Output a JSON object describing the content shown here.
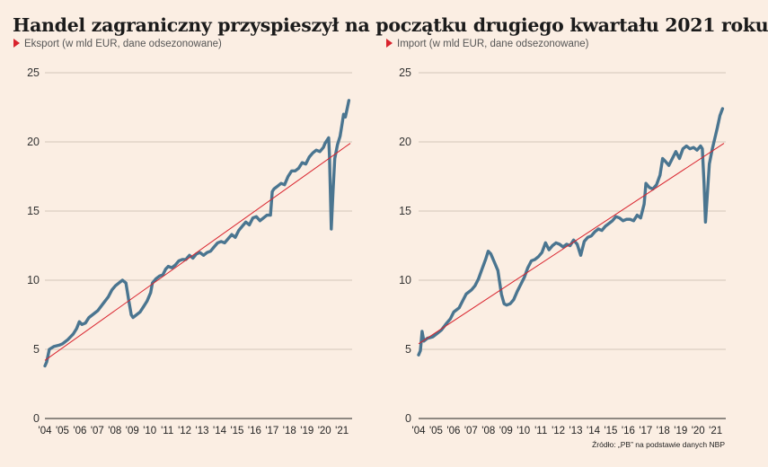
{
  "title": "Handel zagraniczny przyspieszył na początku drugiego kwartału 2021 roku",
  "source": "Źródło: „PB” na podstawie danych NBP",
  "colors": {
    "series": "#4a7590",
    "trend": "#d9232d",
    "grid": "#c6b8ab",
    "axis_text": "#333"
  },
  "chart_data": [
    {
      "type": "line",
      "subtitle": "Eksport (w mld EUR, dane odsezonowane)",
      "xlim": [
        2004,
        2021.33
      ],
      "ylim": [
        0,
        25
      ],
      "yticks": [
        0,
        5,
        10,
        15,
        20,
        25
      ],
      "xticks": [
        "'04",
        "'05",
        "'06",
        "'07",
        "'08",
        "'09",
        "'10",
        "'11",
        "'12",
        "'13",
        "'14",
        "'15",
        "'16",
        "'17",
        "'18",
        "'19",
        "'20",
        "'21"
      ],
      "grid": "horizontal",
      "series": [
        {
          "values": [
            [
              2004.0,
              3.8
            ],
            [
              2004.1,
              4.1
            ],
            [
              2004.25,
              5.0
            ],
            [
              2004.5,
              5.2
            ],
            [
              2004.8,
              5.3
            ],
            [
              2005.0,
              5.4
            ],
            [
              2005.3,
              5.7
            ],
            [
              2005.6,
              6.1
            ],
            [
              2005.8,
              6.5
            ],
            [
              2005.95,
              7.0
            ],
            [
              2006.1,
              6.8
            ],
            [
              2006.3,
              6.9
            ],
            [
              2006.5,
              7.3
            ],
            [
              2006.8,
              7.6
            ],
            [
              2007.0,
              7.8
            ],
            [
              2007.3,
              8.3
            ],
            [
              2007.6,
              8.8
            ],
            [
              2007.8,
              9.3
            ],
            [
              2008.0,
              9.6
            ],
            [
              2008.2,
              9.8
            ],
            [
              2008.4,
              10.0
            ],
            [
              2008.6,
              9.8
            ],
            [
              2008.75,
              8.6
            ],
            [
              2008.9,
              7.5
            ],
            [
              2009.0,
              7.3
            ],
            [
              2009.2,
              7.5
            ],
            [
              2009.4,
              7.7
            ],
            [
              2009.6,
              8.1
            ],
            [
              2009.8,
              8.5
            ],
            [
              2010.0,
              9.1
            ],
            [
              2010.1,
              9.8
            ],
            [
              2010.3,
              10.1
            ],
            [
              2010.5,
              10.3
            ],
            [
              2010.7,
              10.4
            ],
            [
              2010.85,
              10.8
            ],
            [
              2011.0,
              11.0
            ],
            [
              2011.2,
              10.9
            ],
            [
              2011.4,
              11.1
            ],
            [
              2011.6,
              11.4
            ],
            [
              2011.8,
              11.5
            ],
            [
              2012.0,
              11.5
            ],
            [
              2012.2,
              11.8
            ],
            [
              2012.4,
              11.6
            ],
            [
              2012.6,
              11.9
            ],
            [
              2012.8,
              12.0
            ],
            [
              2013.0,
              11.8
            ],
            [
              2013.2,
              12.0
            ],
            [
              2013.4,
              12.1
            ],
            [
              2013.6,
              12.4
            ],
            [
              2013.8,
              12.7
            ],
            [
              2014.0,
              12.8
            ],
            [
              2014.2,
              12.7
            ],
            [
              2014.4,
              13.0
            ],
            [
              2014.6,
              13.3
            ],
            [
              2014.8,
              13.1
            ],
            [
              2015.0,
              13.6
            ],
            [
              2015.2,
              13.9
            ],
            [
              2015.4,
              14.2
            ],
            [
              2015.6,
              14.0
            ],
            [
              2015.8,
              14.5
            ],
            [
              2016.0,
              14.6
            ],
            [
              2016.2,
              14.3
            ],
            [
              2016.4,
              14.5
            ],
            [
              2016.6,
              14.7
            ],
            [
              2016.8,
              14.7
            ],
            [
              2016.9,
              16.4
            ],
            [
              2017.0,
              16.6
            ],
            [
              2017.2,
              16.8
            ],
            [
              2017.4,
              17.0
            ],
            [
              2017.6,
              16.9
            ],
            [
              2017.8,
              17.5
            ],
            [
              2018.0,
              17.9
            ],
            [
              2018.2,
              17.9
            ],
            [
              2018.4,
              18.1
            ],
            [
              2018.6,
              18.5
            ],
            [
              2018.8,
              18.4
            ],
            [
              2019.0,
              18.9
            ],
            [
              2019.2,
              19.2
            ],
            [
              2019.4,
              19.4
            ],
            [
              2019.6,
              19.3
            ],
            [
              2019.8,
              19.6
            ],
            [
              2019.9,
              19.9
            ],
            [
              2020.0,
              20.1
            ],
            [
              2020.1,
              20.3
            ],
            [
              2020.15,
              19.0
            ],
            [
              2020.25,
              13.7
            ],
            [
              2020.35,
              16.5
            ],
            [
              2020.45,
              18.8
            ],
            [
              2020.6,
              19.8
            ],
            [
              2020.75,
              20.4
            ],
            [
              2020.85,
              21.2
            ],
            [
              2020.95,
              22.0
            ],
            [
              2021.05,
              21.8
            ],
            [
              2021.15,
              22.4
            ],
            [
              2021.25,
              23.0
            ]
          ]
        }
      ],
      "trend": [
        [
          2004.0,
          4.2
        ],
        [
          2021.33,
          19.9
        ]
      ]
    },
    {
      "type": "line",
      "subtitle": "Import (w mld EUR, dane odsezonowane)",
      "xlim": [
        2004,
        2021.33
      ],
      "ylim": [
        0,
        25
      ],
      "yticks": [
        0,
        5,
        10,
        15,
        20,
        25
      ],
      "xticks": [
        "'04",
        "'05",
        "'06",
        "'07",
        "'08",
        "'09",
        "'10",
        "'11",
        "'12",
        "'13",
        "'14",
        "'15",
        "'16",
        "'17",
        "'18",
        "'19",
        "'20",
        "'21"
      ],
      "grid": "horizontal",
      "series": [
        {
          "values": [
            [
              2004.0,
              4.6
            ],
            [
              2004.1,
              4.9
            ],
            [
              2004.2,
              6.3
            ],
            [
              2004.3,
              5.6
            ],
            [
              2004.5,
              5.8
            ],
            [
              2004.8,
              5.9
            ],
            [
              2005.0,
              6.1
            ],
            [
              2005.3,
              6.4
            ],
            [
              2005.6,
              6.9
            ],
            [
              2005.8,
              7.2
            ],
            [
              2006.0,
              7.7
            ],
            [
              2006.3,
              8.0
            ],
            [
              2006.5,
              8.5
            ],
            [
              2006.7,
              9.0
            ],
            [
              2007.0,
              9.3
            ],
            [
              2007.2,
              9.6
            ],
            [
              2007.4,
              10.1
            ],
            [
              2007.6,
              10.8
            ],
            [
              2007.8,
              11.5
            ],
            [
              2007.95,
              12.1
            ],
            [
              2008.1,
              11.9
            ],
            [
              2008.3,
              11.3
            ],
            [
              2008.5,
              10.7
            ],
            [
              2008.7,
              9.0
            ],
            [
              2008.85,
              8.3
            ],
            [
              2009.0,
              8.2
            ],
            [
              2009.2,
              8.3
            ],
            [
              2009.4,
              8.6
            ],
            [
              2009.6,
              9.2
            ],
            [
              2009.8,
              9.7
            ],
            [
              2010.0,
              10.2
            ],
            [
              2010.2,
              10.9
            ],
            [
              2010.4,
              11.4
            ],
            [
              2010.6,
              11.5
            ],
            [
              2010.8,
              11.7
            ],
            [
              2011.0,
              12.0
            ],
            [
              2011.2,
              12.7
            ],
            [
              2011.4,
              12.2
            ],
            [
              2011.6,
              12.5
            ],
            [
              2011.8,
              12.7
            ],
            [
              2012.0,
              12.6
            ],
            [
              2012.2,
              12.4
            ],
            [
              2012.4,
              12.6
            ],
            [
              2012.6,
              12.5
            ],
            [
              2012.8,
              12.9
            ],
            [
              2013.0,
              12.6
            ],
            [
              2013.2,
              11.8
            ],
            [
              2013.4,
              12.8
            ],
            [
              2013.6,
              13.1
            ],
            [
              2013.8,
              13.2
            ],
            [
              2014.0,
              13.5
            ],
            [
              2014.2,
              13.7
            ],
            [
              2014.4,
              13.6
            ],
            [
              2014.6,
              13.9
            ],
            [
              2014.8,
              14.1
            ],
            [
              2015.0,
              14.3
            ],
            [
              2015.2,
              14.6
            ],
            [
              2015.4,
              14.5
            ],
            [
              2015.6,
              14.3
            ],
            [
              2015.8,
              14.4
            ],
            [
              2016.0,
              14.4
            ],
            [
              2016.2,
              14.3
            ],
            [
              2016.4,
              14.7
            ],
            [
              2016.6,
              14.5
            ],
            [
              2016.8,
              15.5
            ],
            [
              2016.9,
              17.0
            ],
            [
              2017.1,
              16.7
            ],
            [
              2017.3,
              16.6
            ],
            [
              2017.5,
              16.9
            ],
            [
              2017.7,
              17.6
            ],
            [
              2017.85,
              18.8
            ],
            [
              2018.0,
              18.6
            ],
            [
              2018.2,
              18.3
            ],
            [
              2018.4,
              18.8
            ],
            [
              2018.6,
              19.3
            ],
            [
              2018.8,
              18.8
            ],
            [
              2019.0,
              19.5
            ],
            [
              2019.2,
              19.7
            ],
            [
              2019.4,
              19.5
            ],
            [
              2019.6,
              19.6
            ],
            [
              2019.8,
              19.4
            ],
            [
              2020.0,
              19.7
            ],
            [
              2020.1,
              19.5
            ],
            [
              2020.2,
              17.0
            ],
            [
              2020.28,
              14.2
            ],
            [
              2020.4,
              16.5
            ],
            [
              2020.5,
              18.4
            ],
            [
              2020.65,
              19.4
            ],
            [
              2020.8,
              20.2
            ],
            [
              2020.95,
              21.0
            ],
            [
              2021.1,
              21.9
            ],
            [
              2021.25,
              22.4
            ]
          ]
        }
      ],
      "trend": [
        [
          2004.0,
          5.4
        ],
        [
          2021.33,
          19.9
        ]
      ]
    }
  ]
}
